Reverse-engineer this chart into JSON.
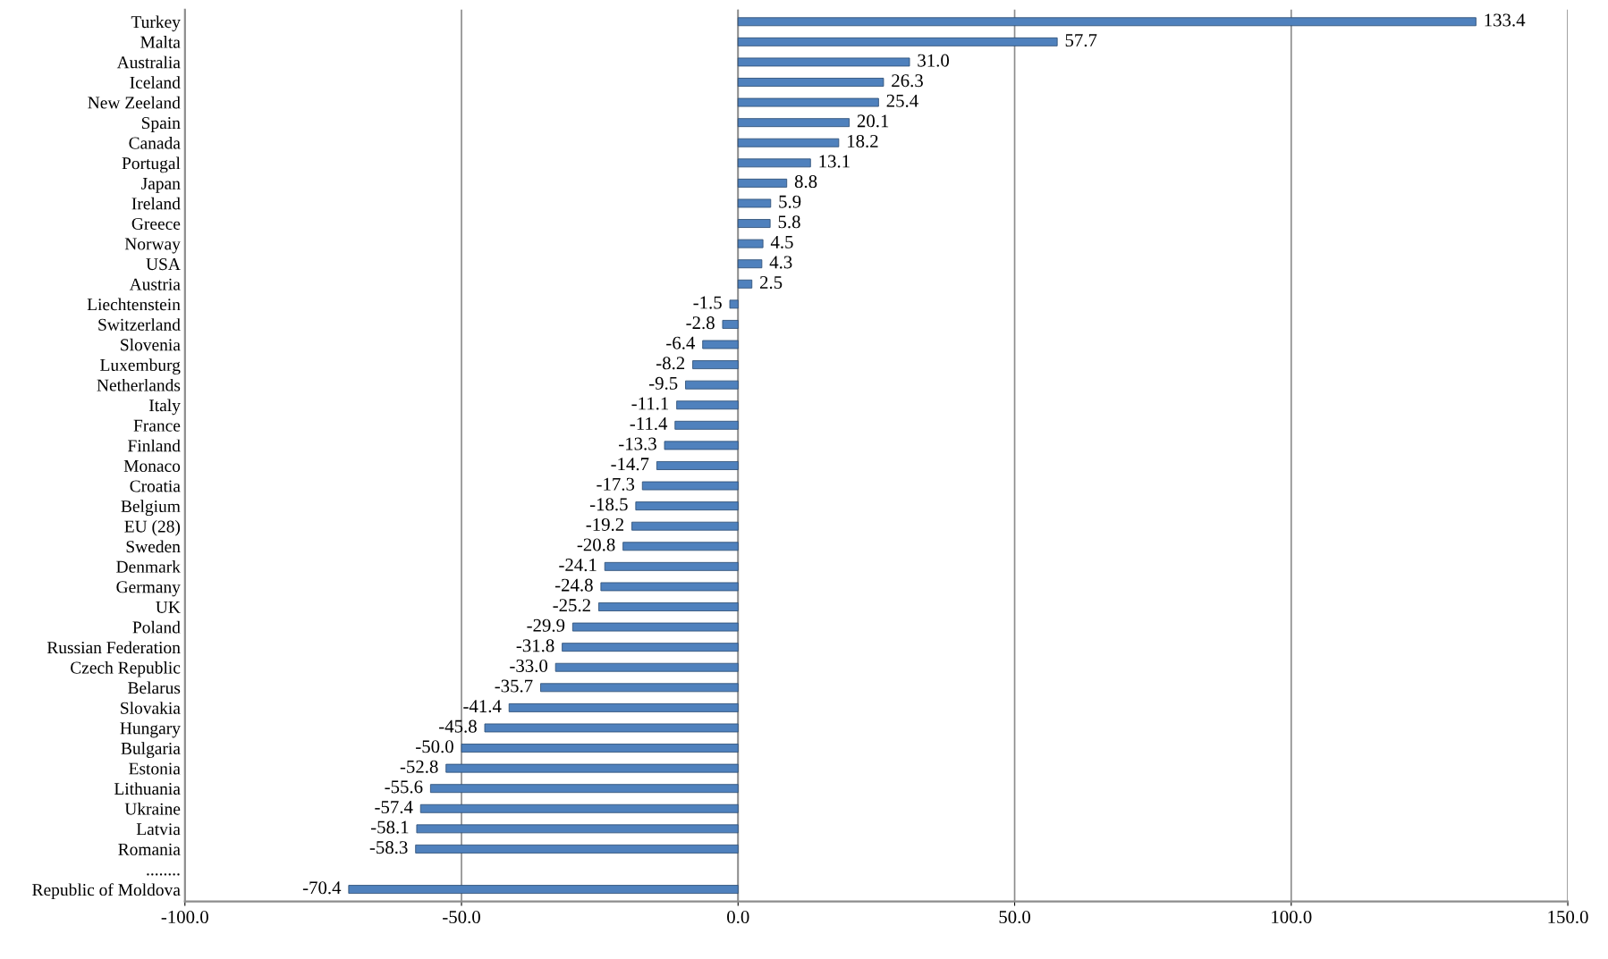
{
  "chart_data": {
    "type": "bar",
    "orientation": "horizontal",
    "color": "#4f81bd",
    "categories": [
      "Turkey",
      "Malta",
      "Australia",
      "Iceland",
      "New Zeeland",
      "Spain",
      "Canada",
      "Portugal",
      "Japan",
      "Ireland",
      "Greece",
      "Norway",
      "USA",
      "Austria",
      "Liechtenstein",
      "Switzerland",
      "Slovenia",
      "Luxemburg",
      "Netherlands",
      "Italy",
      "France",
      "Finland",
      "Monaco",
      "Croatia",
      "Belgium",
      "EU (28)",
      "Sweden",
      "Denmark",
      "Germany",
      "UK",
      "Poland",
      "Russian Federation",
      "Czech Republic",
      "Belarus",
      "Slovakia",
      "Hungary",
      "Bulgaria",
      "Estonia",
      "Lithuania",
      "Ukraine",
      "Latvia",
      "Romania",
      "........",
      "Republic of Moldova"
    ],
    "values": [
      133.4,
      57.7,
      31.0,
      26.3,
      25.4,
      20.1,
      18.2,
      13.1,
      8.8,
      5.9,
      5.8,
      4.5,
      4.3,
      2.5,
      -1.5,
      -2.8,
      -6.4,
      -8.2,
      -9.5,
      -11.1,
      -11.4,
      -13.3,
      -14.7,
      -17.3,
      -18.5,
      -19.2,
      -20.8,
      -24.1,
      -24.8,
      -25.2,
      -29.9,
      -31.8,
      -33.0,
      -35.7,
      -41.4,
      -45.8,
      -50.0,
      -52.8,
      -55.6,
      -57.4,
      -58.1,
      -58.3,
      null,
      -70.4
    ],
    "value_labels": [
      "133.4",
      "57.7",
      "31.0",
      "26.3",
      "25.4",
      "20.1",
      "18.2",
      "13.1",
      "8.8",
      "5.9",
      "5.8",
      "4.5",
      "4.3",
      "2.5",
      "-1.5",
      "-2.8",
      "-6.4",
      "-8.2",
      "-9.5",
      "-11.1",
      "-11.4",
      "-13.3",
      "-14.7",
      "-17.3",
      "-18.5",
      "-19.2",
      "-20.8",
      "-24.1",
      "-24.8",
      "-25.2",
      "-29.9",
      "-31.8",
      "-33.0",
      "-35.7",
      "-41.4",
      "-45.8",
      "-50.0",
      "-52.8",
      "-55.6",
      "-57.4",
      "-58.1",
      "-58.3",
      null,
      "-70.4"
    ],
    "xlim": [
      -100,
      150
    ],
    "xticks": [
      {
        "value": -100,
        "label": "-100.0"
      },
      {
        "value": -50,
        "label": "-50.0"
      },
      {
        "value": 0,
        "label": "0.0"
      },
      {
        "value": 50,
        "label": "50.0"
      },
      {
        "value": 100,
        "label": "100.0"
      },
      {
        "value": 150,
        "label": "150.0"
      }
    ],
    "grid": "x",
    "legend": false
  }
}
